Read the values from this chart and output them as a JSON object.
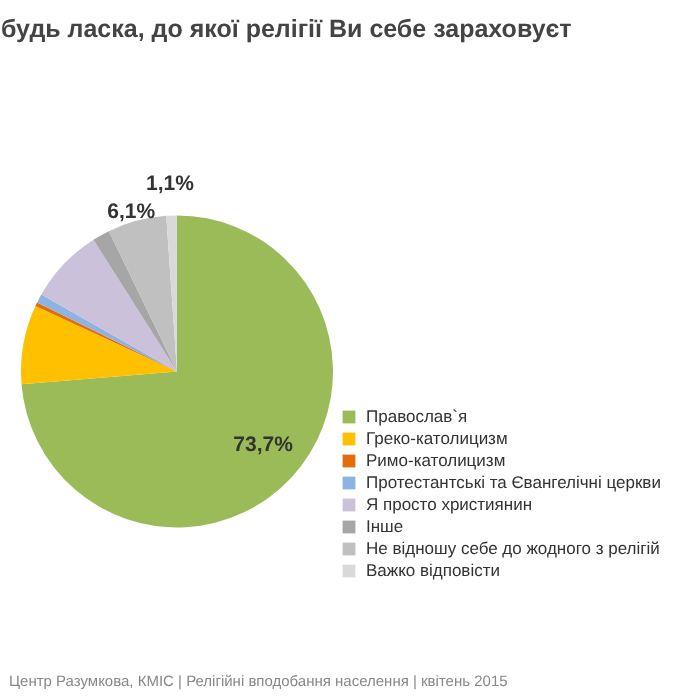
{
  "chart_data": {
    "type": "pie",
    "title": "будь ласка, до якої релігії Ви себе зараховуєт",
    "categories": [
      "Православ`я",
      "Греко-католицизм",
      "Римо-католицизм",
      "Протестантські та Євангелічні церкви",
      "Я просто християнин",
      "Інше",
      "Не відношу себе до жодного з релігій",
      "Важко відповісти"
    ],
    "values": [
      73.7,
      8.2,
      0.4,
      0.9,
      7.8,
      1.8,
      6.1,
      1.1
    ],
    "colors": [
      "#9bbb59",
      "#ffc000",
      "#e46c0a",
      "#8db3e2",
      "#ccc1da",
      "#a6a6a6",
      "#c0c0c0",
      "#d9d9d9"
    ],
    "value_labels": [
      "73,7%",
      null,
      null,
      null,
      null,
      null,
      "6,1%",
      "1,1%"
    ],
    "legend": "right",
    "annotations": [
      "Центр Разумкова, КМІС  |  Релігійні вподобання населення  |  квітень 2015"
    ]
  }
}
